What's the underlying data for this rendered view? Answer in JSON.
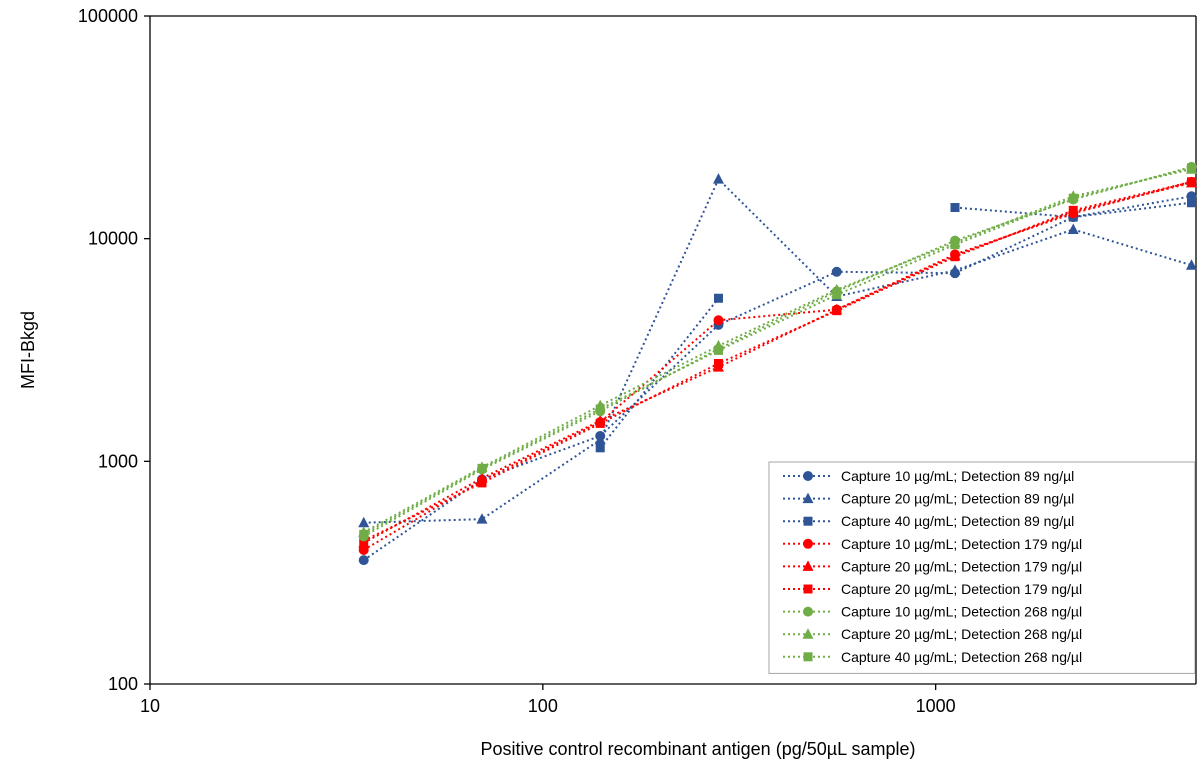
{
  "chart_data": {
    "type": "line",
    "title": "",
    "xlabel": "Positive control recombinant antigen (pg/50µL sample)",
    "ylabel": "MFI-Bkgd",
    "x_scale": "log",
    "y_scale": "log",
    "xlim": [
      10,
      4600
    ],
    "ylim": [
      100,
      100000
    ],
    "x_ticks": [
      "10",
      "100",
      "1000"
    ],
    "y_ticks": [
      "100",
      "1000",
      "10000",
      "100000"
    ],
    "grid": false,
    "legend_position": "bottom-right",
    "x": [
      35,
      70,
      140,
      280,
      560,
      1120,
      2240,
      4480
    ],
    "series": [
      {
        "name": "Capture 10 µg/mL; Detection 89 ng/µl",
        "color": "#2F5597",
        "marker": "circle",
        "values": [
          360,
          830,
          1300,
          4100,
          7100,
          7000,
          12500,
          15500
        ]
      },
      {
        "name": "Capture 20 µg/mL; Detection 89 ng/µl",
        "color": "#2F5597",
        "marker": "triangle",
        "values": [
          530,
          550,
          1250,
          18500,
          5500,
          7200,
          11000,
          7600
        ]
      },
      {
        "name": "Capture 40 µg/mL; Detection 89 ng/µl",
        "color": "#2F5597",
        "marker": "square",
        "values": [
          null,
          null,
          1150,
          5400,
          null,
          13800,
          12500,
          14500
        ]
      },
      {
        "name": "Capture 10 µg/mL; Detection 179 ng/µl",
        "color": "#FF0000",
        "marker": "circle",
        "values": [
          400,
          820,
          1500,
          4300,
          4800,
          8500,
          13000,
          18000
        ]
      },
      {
        "name": "Capture 20 µg/mL; Detection 179 ng/µl",
        "color": "#FF0000",
        "marker": "triangle",
        "values": [
          430,
          840,
          1520,
          2650,
          4800,
          8400,
          13200,
          17800
        ]
      },
      {
        "name": "Capture 20 µg/mL; Detection 179 ng/µl",
        "color": "#FF0000",
        "marker": "square",
        "values": [
          440,
          800,
          1480,
          2750,
          4750,
          8300,
          13400,
          18000
        ]
      },
      {
        "name": "Capture 10 µg/mL; Detection 268 ng/µl",
        "color": "#70AD47",
        "marker": "circle",
        "values": [
          460,
          920,
          1680,
          3200,
          5800,
          9800,
          15000,
          21000
        ]
      },
      {
        "name": "Capture 20 µg/mL; Detection 268 ng/µl",
        "color": "#70AD47",
        "marker": "triangle",
        "values": [
          480,
          940,
          1780,
          3300,
          5900,
          9600,
          15500,
          20500
        ]
      },
      {
        "name": "Capture 40 µg/mL; Detection 268 ng/µl",
        "color": "#70AD47",
        "marker": "square",
        "values": [
          470,
          930,
          1720,
          3150,
          5600,
          9400,
          15200,
          20800
        ]
      }
    ]
  }
}
